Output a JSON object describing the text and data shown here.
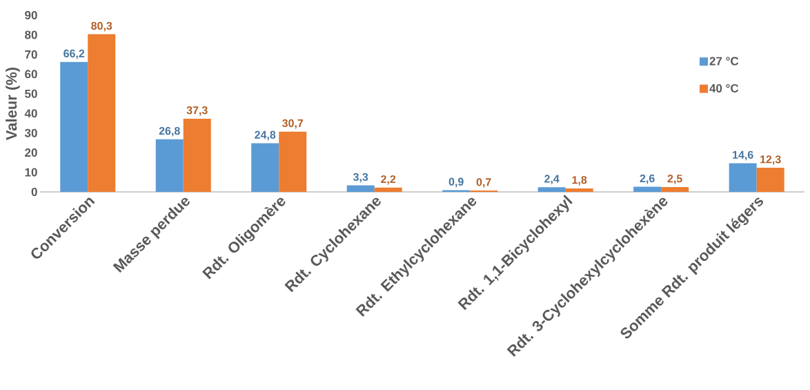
{
  "chart_data": {
    "type": "bar",
    "ylabel": "Valeur (%)",
    "categories": [
      "Conversion",
      "Masse perdue",
      "Rdt. Oligomère",
      "Rdt. Cyclohexane",
      "Rdt. Ethylcyclohexane",
      "Rdt. 1,1-Bicyclohexyl",
      "Rdt. 3-Cyclohexylcyclohexène",
      "Somme Rdt. produit légers"
    ],
    "series": [
      {
        "name": "27 °C",
        "color": "#5b9bd5",
        "values": [
          66.2,
          26.8,
          24.8,
          3.3,
          0.9,
          2.4,
          2.6,
          14.6
        ],
        "value_labels": [
          "66,2",
          "26,8",
          "24,8",
          "3,3",
          "0,9",
          "2,4",
          "2,6",
          "14,6"
        ]
      },
      {
        "name": "40 °C",
        "color": "#ed7d31",
        "values": [
          80.3,
          37.3,
          30.7,
          2.2,
          0.7,
          1.8,
          2.5,
          12.3
        ],
        "value_labels": [
          "80,3",
          "37,3",
          "30,7",
          "2,2",
          "0,7",
          "1,8",
          "2,5",
          "12,3"
        ]
      }
    ],
    "ylim": [
      0,
      90
    ],
    "yticks": [
      0,
      10,
      20,
      30,
      40,
      50,
      60,
      70,
      80,
      90
    ],
    "grid": false,
    "legend": "right"
  }
}
